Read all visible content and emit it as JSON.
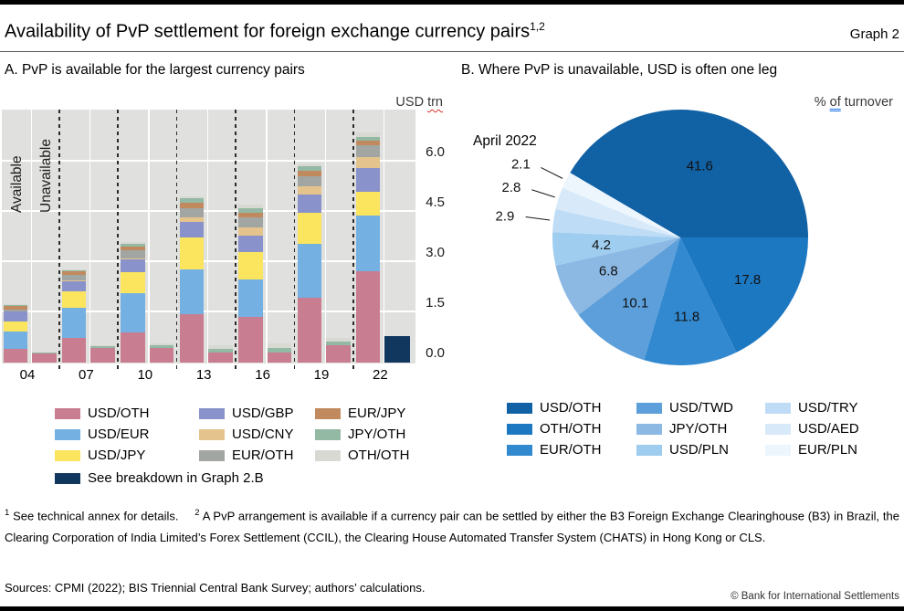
{
  "page": {
    "title": "Availability of PvP settlement for foreign exchange currency pairs",
    "title_sup": "1,2",
    "graph_label": "Graph 2",
    "footnote_1_marker": "1",
    "footnote_1_text": "See technical annex for details.",
    "footnote_2_marker": "2",
    "footnote_2_text": "A PvP arrangement is available if a currency pair can be settled by either the B3 Foreign Exchange Clearinghouse (B3) in Brazil, the Clearing Corporation of India Limited’s Forex Settlement (CCIL), the Clearing House Automated Transfer System (CHATS) in Hong Kong or CLS.",
    "sources": "Sources: CPMI (2022); BIS Triennial Central Bank Survey; authors’ calculations.",
    "copyright": "© Bank for International Settlements"
  },
  "panel_a": {
    "heading": "A. PvP is available for the largest currency pairs",
    "ylabel_prefix": "USD",
    "ylabel_word": "trn",
    "available_label": "Available",
    "unavailable_label": "Unavailable"
  },
  "panel_b": {
    "heading": "B. Where PvP is unavailable, USD is often one leg",
    "ylabel_percent": "%",
    "ylabel_of": "of",
    "ylabel_word": "turnover",
    "date_label": "April 2022"
  },
  "chart_data": [
    {
      "type": "bar",
      "stacked": true,
      "panel": "A",
      "title": "A. PvP is available for the largest currency pairs",
      "unit": "USD trn",
      "categories": [
        "04",
        "07",
        "10",
        "13",
        "16",
        "19",
        "22"
      ],
      "group_bars": [
        "Available",
        "Unavailable"
      ],
      "ylim": [
        0,
        6.9
      ],
      "yticks": [
        0.0,
        1.5,
        3.0,
        4.5,
        6.0
      ],
      "grid": true,
      "legend_position": "below",
      "series": [
        {
          "name": "USD/OTH",
          "color": "#c97d90",
          "available": [
            0.41,
            0.75,
            0.9,
            1.44,
            1.37,
            1.95,
            2.74
          ],
          "unavailable": [
            0.28,
            0.45,
            0.43,
            0.3,
            0.31,
            0.51,
            0
          ]
        },
        {
          "name": "USD/EUR",
          "color": "#74b1e2",
          "available": [
            0.51,
            0.88,
            1.18,
            1.34,
            1.12,
            1.6,
            1.67
          ],
          "unavailable": [
            0,
            0,
            0,
            0,
            0,
            0,
            0
          ]
        },
        {
          "name": "USD/JPY",
          "color": "#fbe55f",
          "available": [
            0.31,
            0.49,
            0.62,
            0.97,
            0.81,
            0.92,
            0.7
          ],
          "unavailable": [
            0,
            0,
            0,
            0,
            0,
            0,
            0
          ]
        },
        {
          "name": "USD/GBP",
          "color": "#8992cb",
          "available": [
            0.29,
            0.32,
            0.38,
            0.46,
            0.51,
            0.55,
            0.72
          ],
          "unavailable": [
            0,
            0,
            0,
            0,
            0,
            0,
            0
          ]
        },
        {
          "name": "USD/CNY",
          "color": "#e5c38d",
          "available": [
            0.01,
            0.01,
            0.03,
            0.14,
            0.23,
            0.25,
            0.33
          ],
          "unavailable": [
            0,
            0,
            0,
            0,
            0,
            0,
            0
          ]
        },
        {
          "name": "EUR/OTH",
          "color": "#a2a6a3",
          "available": [
            0.06,
            0.17,
            0.25,
            0.28,
            0.3,
            0.31,
            0.35
          ],
          "unavailable": [
            0,
            0,
            0,
            0,
            0,
            0,
            0
          ]
        },
        {
          "name": "EUR/JPY",
          "color": "#c18a5e",
          "available": [
            0.1,
            0.12,
            0.11,
            0.14,
            0.15,
            0.16,
            0.14
          ],
          "unavailable": [
            0,
            0,
            0,
            0,
            0,
            0,
            0
          ]
        },
        {
          "name": "JPY/OTH",
          "color": "#93b8a4",
          "available": [
            0.02,
            0.03,
            0.07,
            0.14,
            0.13,
            0.13,
            0.11
          ],
          "unavailable": [
            0.01,
            0.03,
            0.08,
            0.12,
            0.14,
            0.13,
            0
          ]
        },
        {
          "name": "OTH/OTH",
          "color": "#d9d9d3",
          "available": [
            0.03,
            0.03,
            0.07,
            0.06,
            0.12,
            0.1,
            0.12
          ],
          "unavailable": [
            0.02,
            0.04,
            0.06,
            0.1,
            0.12,
            0.11,
            0
          ]
        }
      ],
      "special_bar": {
        "label": "See breakdown in Graph 2.B",
        "color": "#12375e",
        "category": "22",
        "bar": "Unavailable",
        "value": 0.8
      }
    },
    {
      "type": "pie",
      "panel": "B",
      "title": "B. Where PvP is unavailable, USD is often one leg",
      "unit": "% of turnover",
      "date_label": "April 2022",
      "start_angle_cw_from_east": 210.4,
      "slices": [
        {
          "label": "USD/OTH",
          "value": 41.6,
          "color": "#1161a5"
        },
        {
          "label": "OTH/OTH",
          "value": 17.8,
          "color": "#1d78c2"
        },
        {
          "label": "EUR/OTH",
          "value": 11.8,
          "color": "#3389cf"
        },
        {
          "label": "USD/TWD",
          "value": 10.1,
          "color": "#5c9fda"
        },
        {
          "label": "JPY/OTH",
          "value": 6.8,
          "color": "#8cb8e4"
        },
        {
          "label": "USD/PLN",
          "value": 4.2,
          "color": "#9ecdf0"
        },
        {
          "label": "USD/TRY",
          "value": 2.9,
          "color": "#bedcf6"
        },
        {
          "label": "USD/AED",
          "value": 2.8,
          "color": "#d8eafa"
        },
        {
          "label": "EUR/PLN",
          "value": 2.1,
          "color": "#eef6fd"
        }
      ]
    }
  ]
}
